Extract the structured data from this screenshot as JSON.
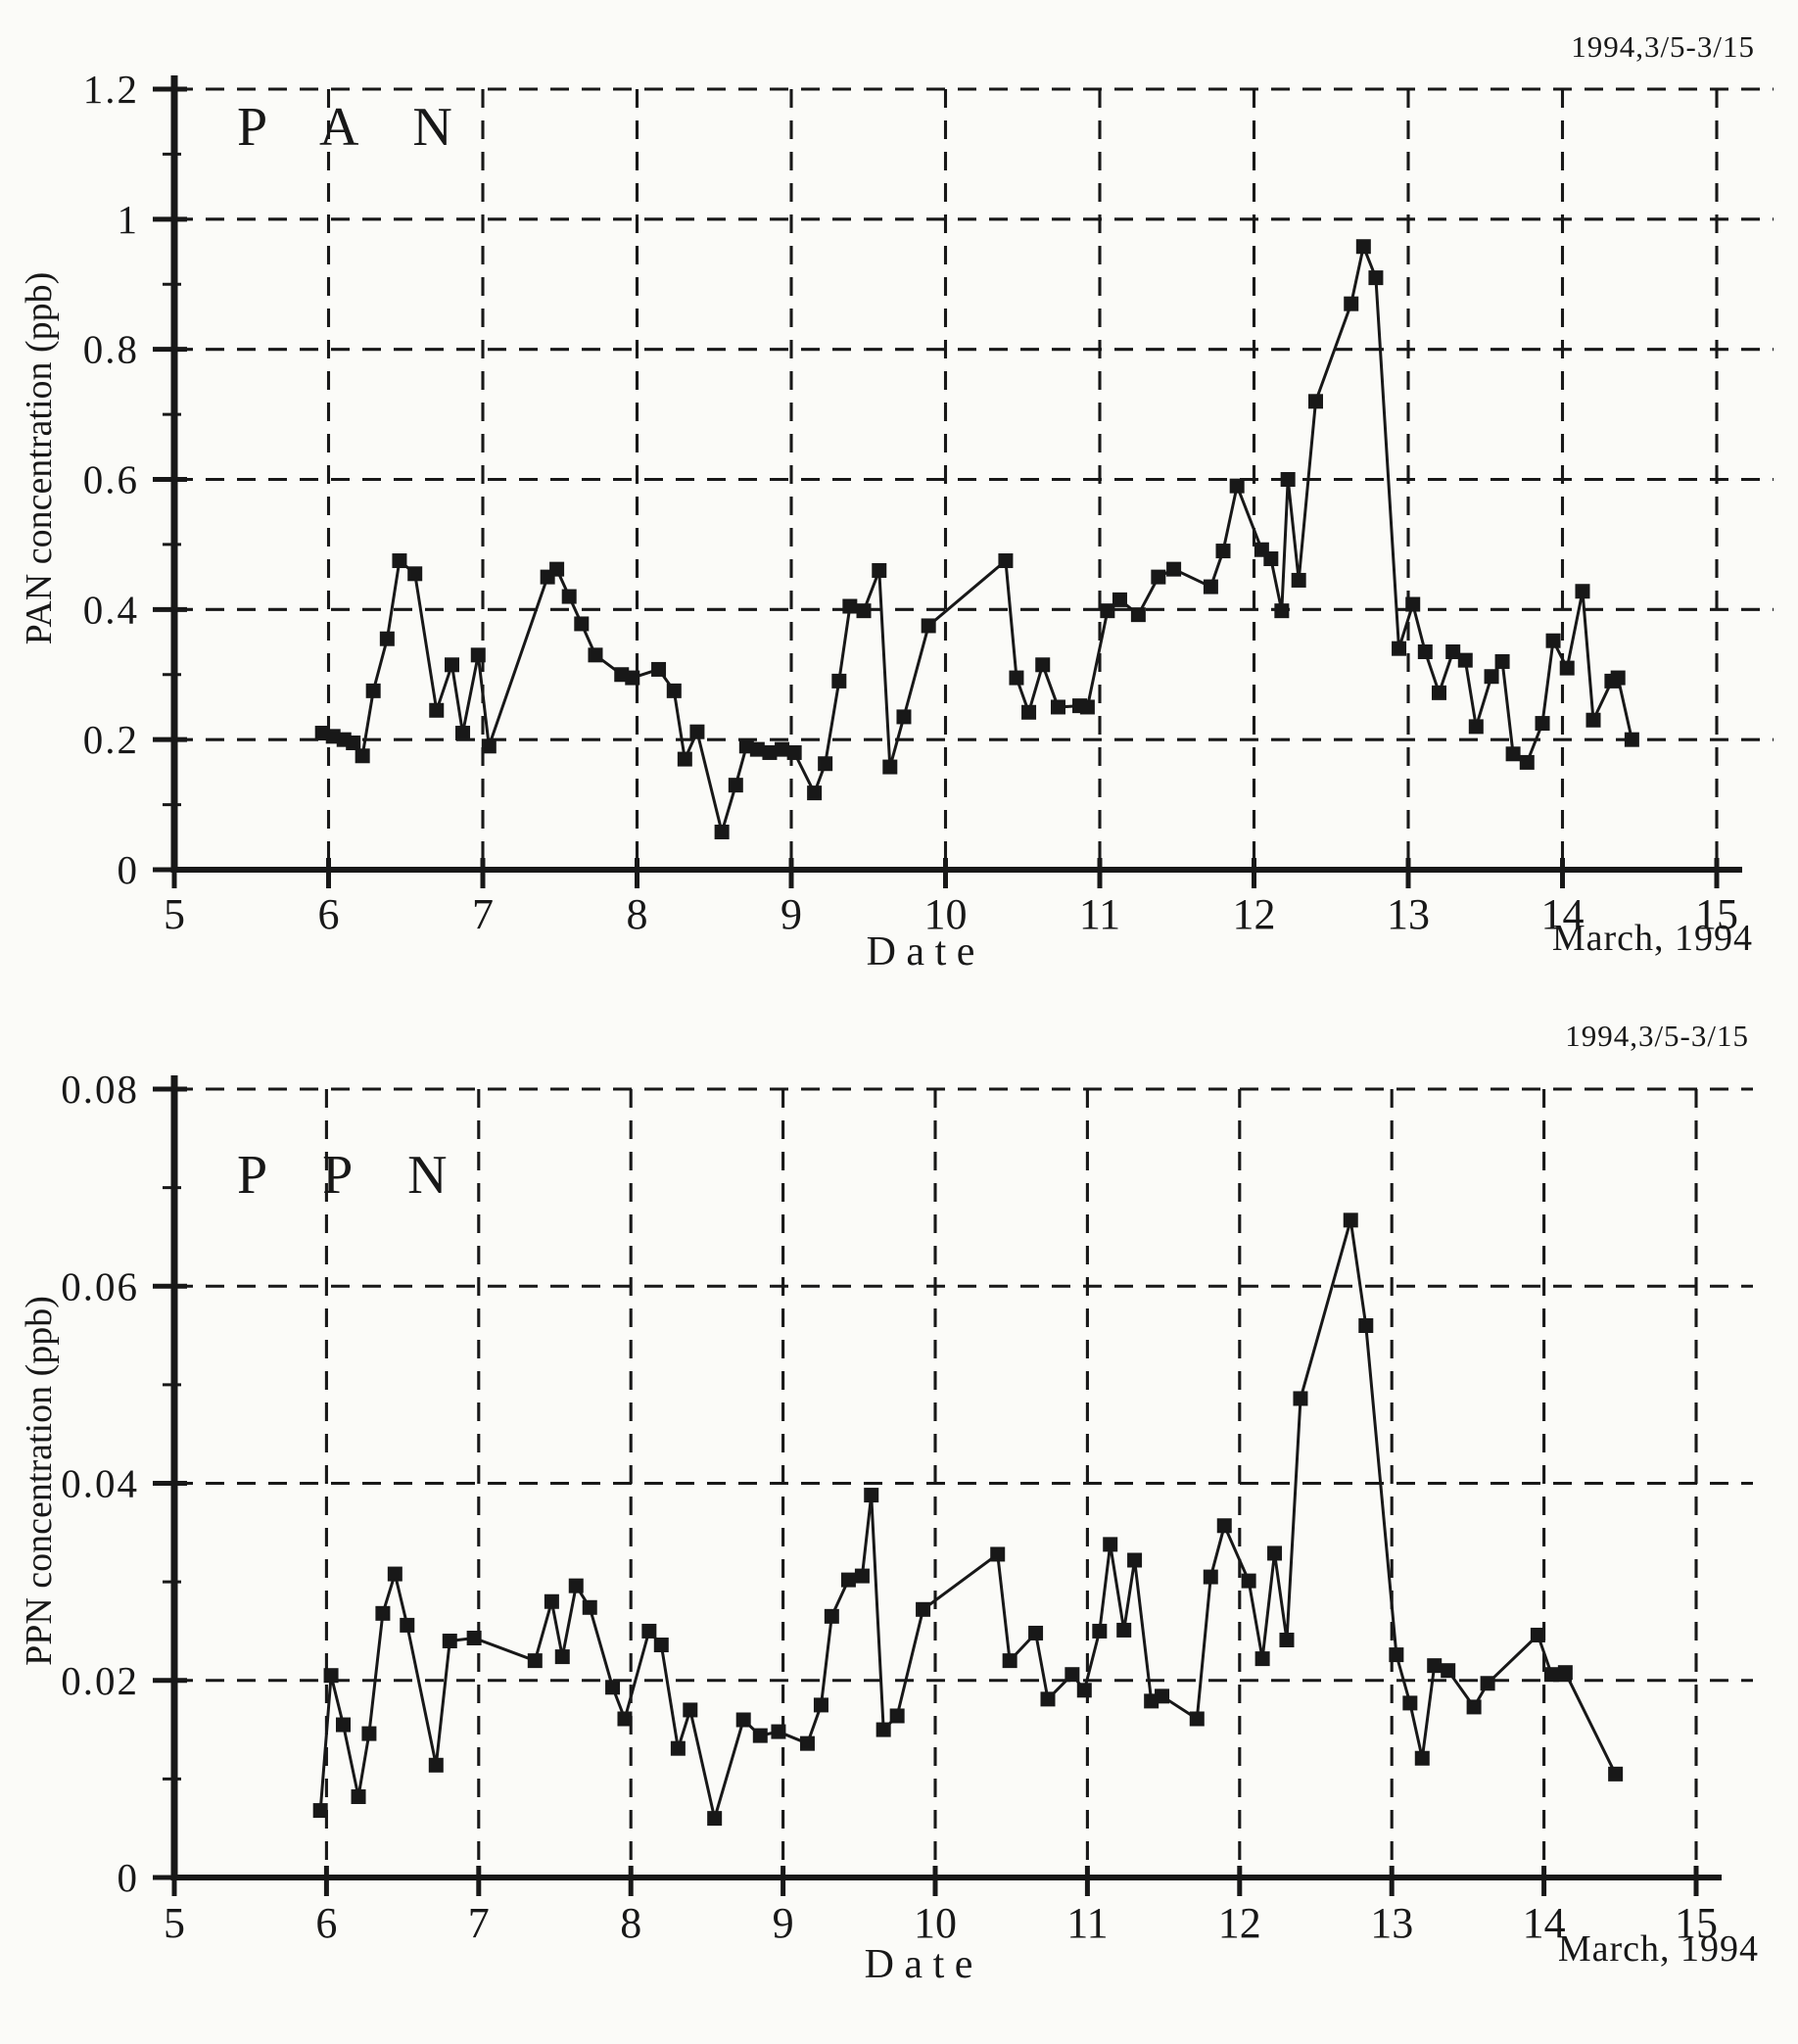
{
  "page": {
    "background": "#fbfbf8",
    "ink": "#181818"
  },
  "chart_data": [
    {
      "type": "line",
      "title": "P A N",
      "annotation": "1994,3/5-3/15",
      "ylabel": "PAN concentration (ppb)",
      "xlabel": "D a t e",
      "xlabel_right": "March, 1994",
      "xlim": [
        5,
        15
      ],
      "ylim": [
        0,
        1.2
      ],
      "xticks": [
        5,
        6,
        7,
        8,
        9,
        10,
        11,
        12,
        13,
        14,
        15
      ],
      "yticks": [
        0,
        0.2,
        0.4,
        0.6,
        0.8,
        1,
        1.2
      ],
      "ytick_labels": [
        "0",
        "0.2",
        "0.4",
        "0.6",
        "0.8",
        "1",
        "1.2"
      ],
      "grid": true,
      "legend": "none",
      "marker": "filled-square",
      "series": [
        {
          "name": "PAN",
          "x": [
            5.96,
            6.03,
            6.1,
            6.16,
            6.22,
            6.29,
            6.38,
            6.46,
            6.56,
            6.7,
            6.8,
            6.87,
            6.97,
            7.04,
            7.42,
            7.48,
            7.56,
            7.64,
            7.73,
            7.9,
            7.97,
            8.14,
            8.24,
            8.31,
            8.39,
            8.55,
            8.64,
            8.71,
            8.78,
            8.86,
            8.94,
            9.02,
            9.15,
            9.22,
            9.31,
            9.38,
            9.47,
            9.57,
            9.64,
            9.73,
            9.89,
            10.39,
            10.46,
            10.54,
            10.63,
            10.73,
            10.87,
            10.92,
            11.05,
            11.13,
            11.25,
            11.38,
            11.48,
            11.72,
            11.8,
            11.89,
            12.05,
            12.11,
            12.18,
            12.22,
            12.29,
            12.4,
            12.63,
            12.71,
            12.79,
            12.94,
            13.03,
            13.11,
            13.2,
            13.29,
            13.37,
            13.44,
            13.54,
            13.61,
            13.68,
            13.77,
            13.87,
            13.94,
            14.03,
            14.13,
            14.2,
            14.32,
            14.36,
            14.45
          ],
          "y": [
            0.21,
            0.205,
            0.2,
            0.195,
            0.175,
            0.275,
            0.355,
            0.475,
            0.455,
            0.245,
            0.315,
            0.21,
            0.33,
            0.19,
            0.45,
            0.462,
            0.42,
            0.378,
            0.33,
            0.3,
            0.295,
            0.308,
            0.275,
            0.17,
            0.212,
            0.058,
            0.13,
            0.19,
            0.185,
            0.18,
            0.185,
            0.18,
            0.118,
            0.163,
            0.29,
            0.405,
            0.398,
            0.46,
            0.158,
            0.235,
            0.375,
            0.475,
            0.295,
            0.242,
            0.315,
            0.25,
            0.252,
            0.25,
            0.398,
            0.415,
            0.392,
            0.45,
            0.462,
            0.435,
            0.49,
            0.59,
            0.492,
            0.478,
            0.398,
            0.6,
            0.445,
            0.72,
            0.87,
            0.958,
            0.91,
            0.34,
            0.408,
            0.335,
            0.272,
            0.335,
            0.322,
            0.22,
            0.297,
            0.32,
            0.178,
            0.165,
            0.225,
            0.352,
            0.31,
            0.428,
            0.23,
            0.29,
            0.295,
            0.2
          ]
        }
      ]
    },
    {
      "type": "line",
      "title": "P P N",
      "annotation": "1994,3/5-3/15",
      "ylabel": "PPN concentration (ppb)",
      "xlabel": "D a t e",
      "xlabel_right": "March, 1994",
      "xlim": [
        5,
        15
      ],
      "ylim": [
        0,
        0.08
      ],
      "xticks": [
        5,
        6,
        7,
        8,
        9,
        10,
        11,
        12,
        13,
        14,
        15
      ],
      "yticks": [
        0,
        0.02,
        0.04,
        0.06,
        0.08
      ],
      "ytick_labels": [
        "0",
        "0.02",
        "0.04",
        "0.06",
        "0.08"
      ],
      "grid": true,
      "legend": "none",
      "marker": "filled-square",
      "series": [
        {
          "name": "PPN",
          "x": [
            5.96,
            6.03,
            6.11,
            6.21,
            6.28,
            6.37,
            6.45,
            6.53,
            6.72,
            6.81,
            6.97,
            7.37,
            7.48,
            7.55,
            7.64,
            7.73,
            7.88,
            7.96,
            8.12,
            8.2,
            8.31,
            8.39,
            8.55,
            8.74,
            8.85,
            8.97,
            9.16,
            9.25,
            9.32,
            9.43,
            9.52,
            9.58,
            9.66,
            9.75,
            9.92,
            10.41,
            10.49,
            10.66,
            10.74,
            10.9,
            10.98,
            11.08,
            11.15,
            11.24,
            11.31,
            11.42,
            11.49,
            11.72,
            11.81,
            11.9,
            12.06,
            12.15,
            12.23,
            12.31,
            12.4,
            12.73,
            12.83,
            13.03,
            13.12,
            13.2,
            13.28,
            13.37,
            13.54,
            13.63,
            13.96,
            14.05,
            14.14,
            14.47
          ],
          "y": [
            0.0068,
            0.0205,
            0.0155,
            0.0082,
            0.0146,
            0.0268,
            0.0308,
            0.0256,
            0.0114,
            0.024,
            0.0243,
            0.022,
            0.028,
            0.0224,
            0.0296,
            0.0274,
            0.0193,
            0.0161,
            0.025,
            0.0236,
            0.0131,
            0.017,
            0.006,
            0.016,
            0.0144,
            0.0148,
            0.0136,
            0.0175,
            0.0265,
            0.0302,
            0.0306,
            0.0388,
            0.015,
            0.0164,
            0.0272,
            0.0328,
            0.022,
            0.0248,
            0.0181,
            0.0206,
            0.019,
            0.025,
            0.0338,
            0.0251,
            0.0322,
            0.0179,
            0.0184,
            0.0161,
            0.0305,
            0.0357,
            0.0301,
            0.0222,
            0.0329,
            0.0241,
            0.0486,
            0.0667,
            0.056,
            0.0226,
            0.0177,
            0.0121,
            0.0215,
            0.021,
            0.0173,
            0.0197,
            0.0246,
            0.0206,
            0.0208,
            0.0105
          ]
        }
      ]
    }
  ]
}
